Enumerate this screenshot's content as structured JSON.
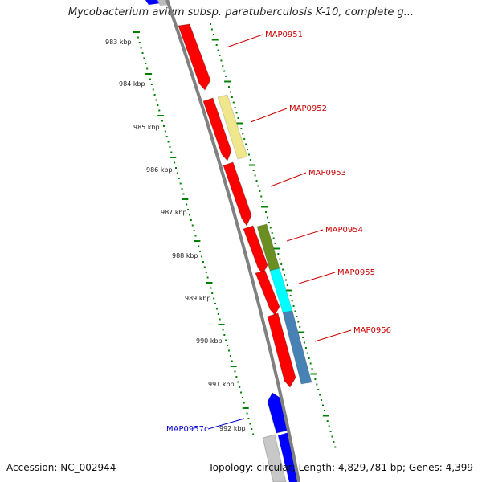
{
  "title": "Mycobacterium avium subsp. paratuberculosis K-10, complete g...",
  "footer": {
    "accession": "Accession: NC_002944",
    "summary": "Topology: circular; Length: 4,829,781 bp; Genes: 4,399"
  },
  "colors": {
    "forward_gene": "#ff0000",
    "reverse_gene": "#0000ff",
    "label_red": "#cc0000",
    "label_blue": "#0000cc",
    "kbp_tick": "#008000",
    "backbone": "#808080"
  },
  "kbp_marks": [
    "983 kbp",
    "984 kbp",
    "985 kbp",
    "986 kbp",
    "987 kbp",
    "988 kbp",
    "989 kbp",
    "990 kbp",
    "991 kbp",
    "992 kbp"
  ],
  "genes": [
    {
      "label": "MAP0951",
      "strand": "forward",
      "color": "#ff0000"
    },
    {
      "label": "MAP0952",
      "strand": "forward",
      "color": "#ff0000"
    },
    {
      "label": "MAP0953",
      "strand": "forward",
      "color": "#ff0000"
    },
    {
      "label": "MAP0954",
      "strand": "forward",
      "color": "#ff0000"
    },
    {
      "label": "MAP0955",
      "strand": "forward",
      "color": "#ff0000"
    },
    {
      "label": "MAP0956",
      "strand": "forward",
      "color": "#ff0000"
    },
    {
      "label": "MAP0957c",
      "strand": "reverse",
      "color": "#0000ff"
    }
  ],
  "features": [
    {
      "color": "#f0e68c"
    },
    {
      "color": "#6b8e23"
    },
    {
      "color": "#00ffff"
    },
    {
      "color": "#4682b4"
    }
  ]
}
